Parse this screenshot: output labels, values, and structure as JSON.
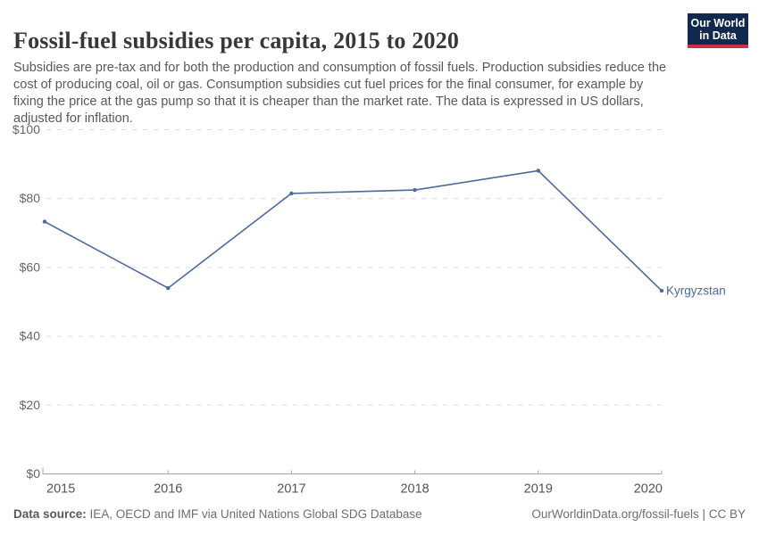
{
  "header": {
    "title": "Fossil-fuel subsidies per capita, 2015 to 2020",
    "subtitle": "Subsidies are pre-tax and for both the production and consumption of fossil fuels. Production subsidies reduce the cost of producing coal, oil or gas. Consumption subsidies cut fuel prices for the final consumer, for example by fixing the price at the gas pump so that it is cheaper than the market rate. The data is expressed in US dollars, adjusted for inflation."
  },
  "logo": {
    "line1": "Our World",
    "line2": "in Data",
    "bg_color": "#12294f",
    "accent_color": "#ce2e40"
  },
  "chart_data": {
    "type": "line",
    "title": "Fossil-fuel subsidies per capita, 2015 to 2020",
    "x": [
      2015,
      2016,
      2017,
      2018,
      2019,
      2020
    ],
    "series": [
      {
        "name": "Kyrgyzstan",
        "values": [
          73.3,
          54.0,
          81.5,
          82.5,
          88.1,
          53.2
        ],
        "color": "#4c6a9c"
      }
    ],
    "xlabel": "",
    "ylabel": "",
    "ylim": [
      0,
      100
    ],
    "yticks": [
      0,
      20,
      40,
      60,
      80,
      100
    ],
    "ytick_prefix": "$",
    "grid": "horizontal-dashed",
    "legend_position": "end-of-line-label",
    "colors": {
      "grid_line": "#dcdcdc",
      "axis_line": "#a3a3a3",
      "y_tick_label": "#666666",
      "x_tick_label": "#555555"
    }
  },
  "footer": {
    "datasource_label": "Data source:",
    "datasource_text": " IEA, OECD and IMF via United Nations Global SDG Database",
    "credit": "OurWorldinData.org/fossil-fuels | CC BY"
  }
}
